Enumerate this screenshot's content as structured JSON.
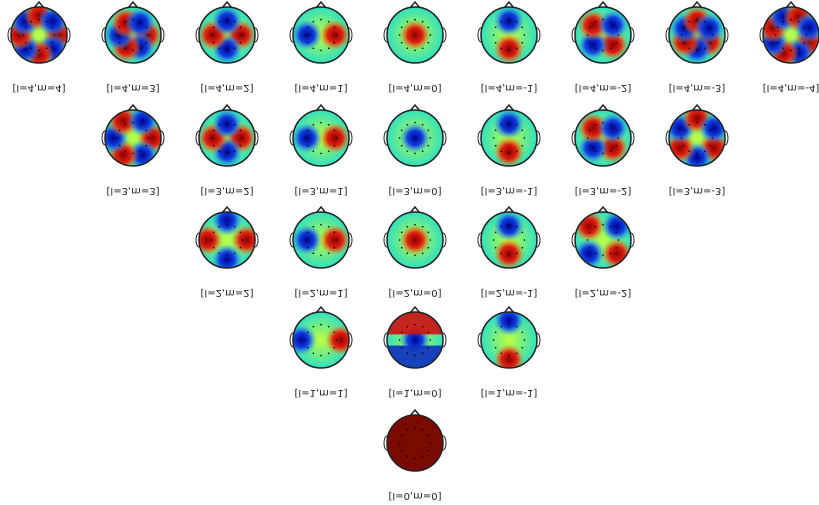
{
  "rows": [
    {
      "labels": [
        "[l=4,m=4]",
        "[l=4,m=3]",
        "[l=4,m=2]",
        "[l=4,m=1]",
        "[l=4,m=0]",
        "[l=4,m=-1]",
        "[l=4,m=-2]",
        "[l=4,m=-3]",
        "[l=4,m=-4]"
      ]
    },
    {
      "labels": [
        "[l=3,m=3]",
        "[l=3,m=2]",
        "[l=3,m=1]",
        "[l=3,m=0]",
        "[l=3,m=-1]",
        "[l=3,m=-2]",
        "[l=3,m=-3]"
      ]
    },
    {
      "labels": [
        "[l=2,m=2]",
        "[l=2,m=1]",
        "[l=2,m=0]",
        "[l=2,m=-1]",
        "[l=2,m=-2]"
      ]
    },
    {
      "labels": [
        "[l=1,m=1]",
        "[l=1,m=0]",
        "[l=1,m=-1]"
      ]
    },
    {
      "labels": [
        "[l=0,m=0]"
      ]
    }
  ]
}
